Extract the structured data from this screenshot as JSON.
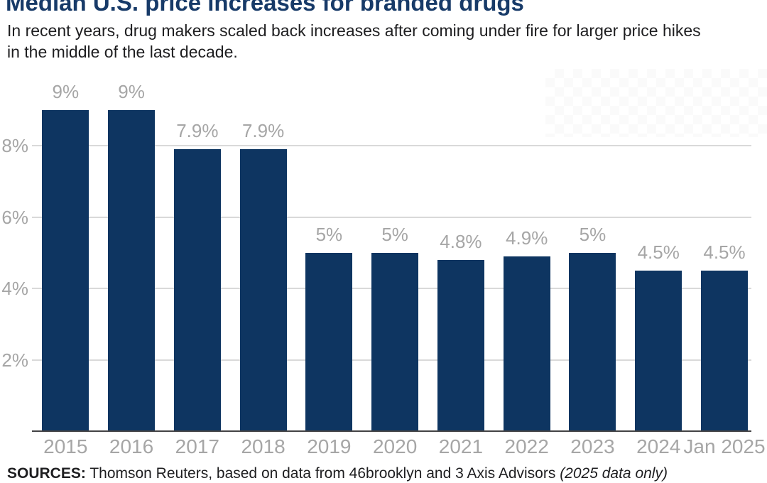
{
  "header": {
    "title": "Median U.S. price increases for branded drugs",
    "subtitle_lines": [
      "In recent years, drug makers scaled back increases after coming under fire for larger price hikes",
      "in the middle of the last decade."
    ]
  },
  "source": {
    "prefix": "SOURCES:",
    "main": " Thomson Reuters, based on data from 46brooklyn and 3 Axis Advisors ",
    "italic": "(2025 data only)"
  },
  "chart_data": {
    "type": "bar",
    "title": "Median U.S. price increases for branded drugs",
    "categories": [
      "2015",
      "2016",
      "2017",
      "2018",
      "2019",
      "2020",
      "2021",
      "2022",
      "2023",
      "2024",
      "Jan 2025"
    ],
    "values": [
      9,
      9,
      7.9,
      7.9,
      5,
      5,
      4.8,
      4.9,
      5,
      4.5,
      4.5
    ],
    "value_labels": [
      "9%",
      "9%",
      "7.9%",
      "7.9%",
      "5%",
      "5%",
      "4.8%",
      "4.9%",
      "5%",
      "4.5%",
      "4.5%"
    ],
    "xlabel": "",
    "ylabel": "",
    "y_ticks": [
      {
        "value": 2,
        "label": "2%"
      },
      {
        "value": 4,
        "label": "4%"
      },
      {
        "value": 6,
        "label": "6%"
      },
      {
        "value": 8,
        "label": "8%"
      }
    ],
    "ylim": [
      0,
      9.5
    ],
    "grid": "horizontal",
    "legend": "none",
    "bar_color": "#0e3561",
    "label_color": "#a6a6a6",
    "gridline_color": "#d9d9d9",
    "axis_color": "#424244",
    "title_color": "#173a68"
  }
}
